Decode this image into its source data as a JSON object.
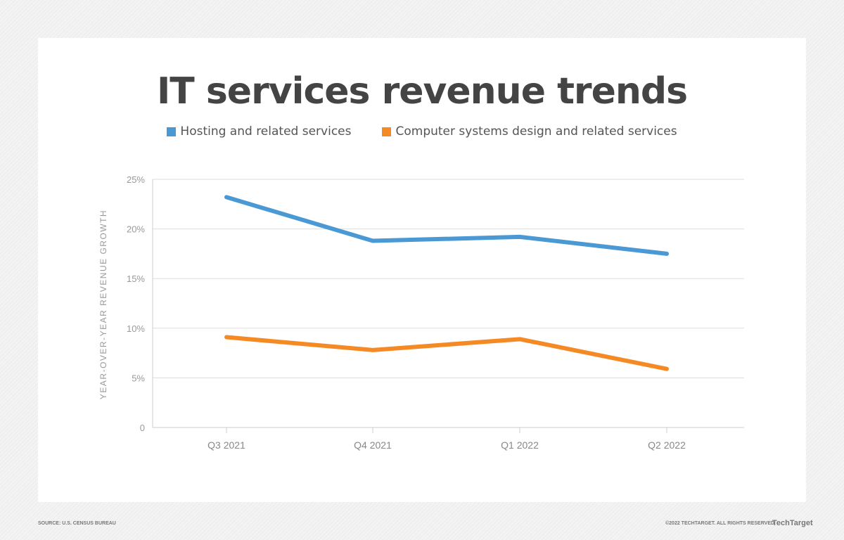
{
  "chart_data": {
    "type": "line",
    "title": "IT services revenue trends",
    "ylabel": "YEAR-OVER-YEAR REVENUE GROWTH",
    "xlabel": "",
    "categories": [
      "Q3 2021",
      "Q4 2021",
      "Q1 2022",
      "Q2 2022"
    ],
    "ylim": [
      0,
      25
    ],
    "yticks": [
      0,
      5,
      10,
      15,
      20,
      25
    ],
    "ytick_labels": [
      "0",
      "5%",
      "10%",
      "15%",
      "20%",
      "25%"
    ],
    "grid": true,
    "legend": "top",
    "series": [
      {
        "name": "Hosting and related services",
        "color": "#4a98d4",
        "values": [
          23.2,
          18.8,
          19.2,
          17.5
        ]
      },
      {
        "name": "Computer systems design and related services",
        "color": "#f58a24",
        "values": [
          9.1,
          7.8,
          8.9,
          5.9
        ]
      }
    ]
  },
  "footer": {
    "source": "SOURCE: U.S. CENSUS BUREAU",
    "copyright": "©2022 TECHTARGET. ALL RIGHTS RESERVED",
    "logo": "TechTarget"
  }
}
